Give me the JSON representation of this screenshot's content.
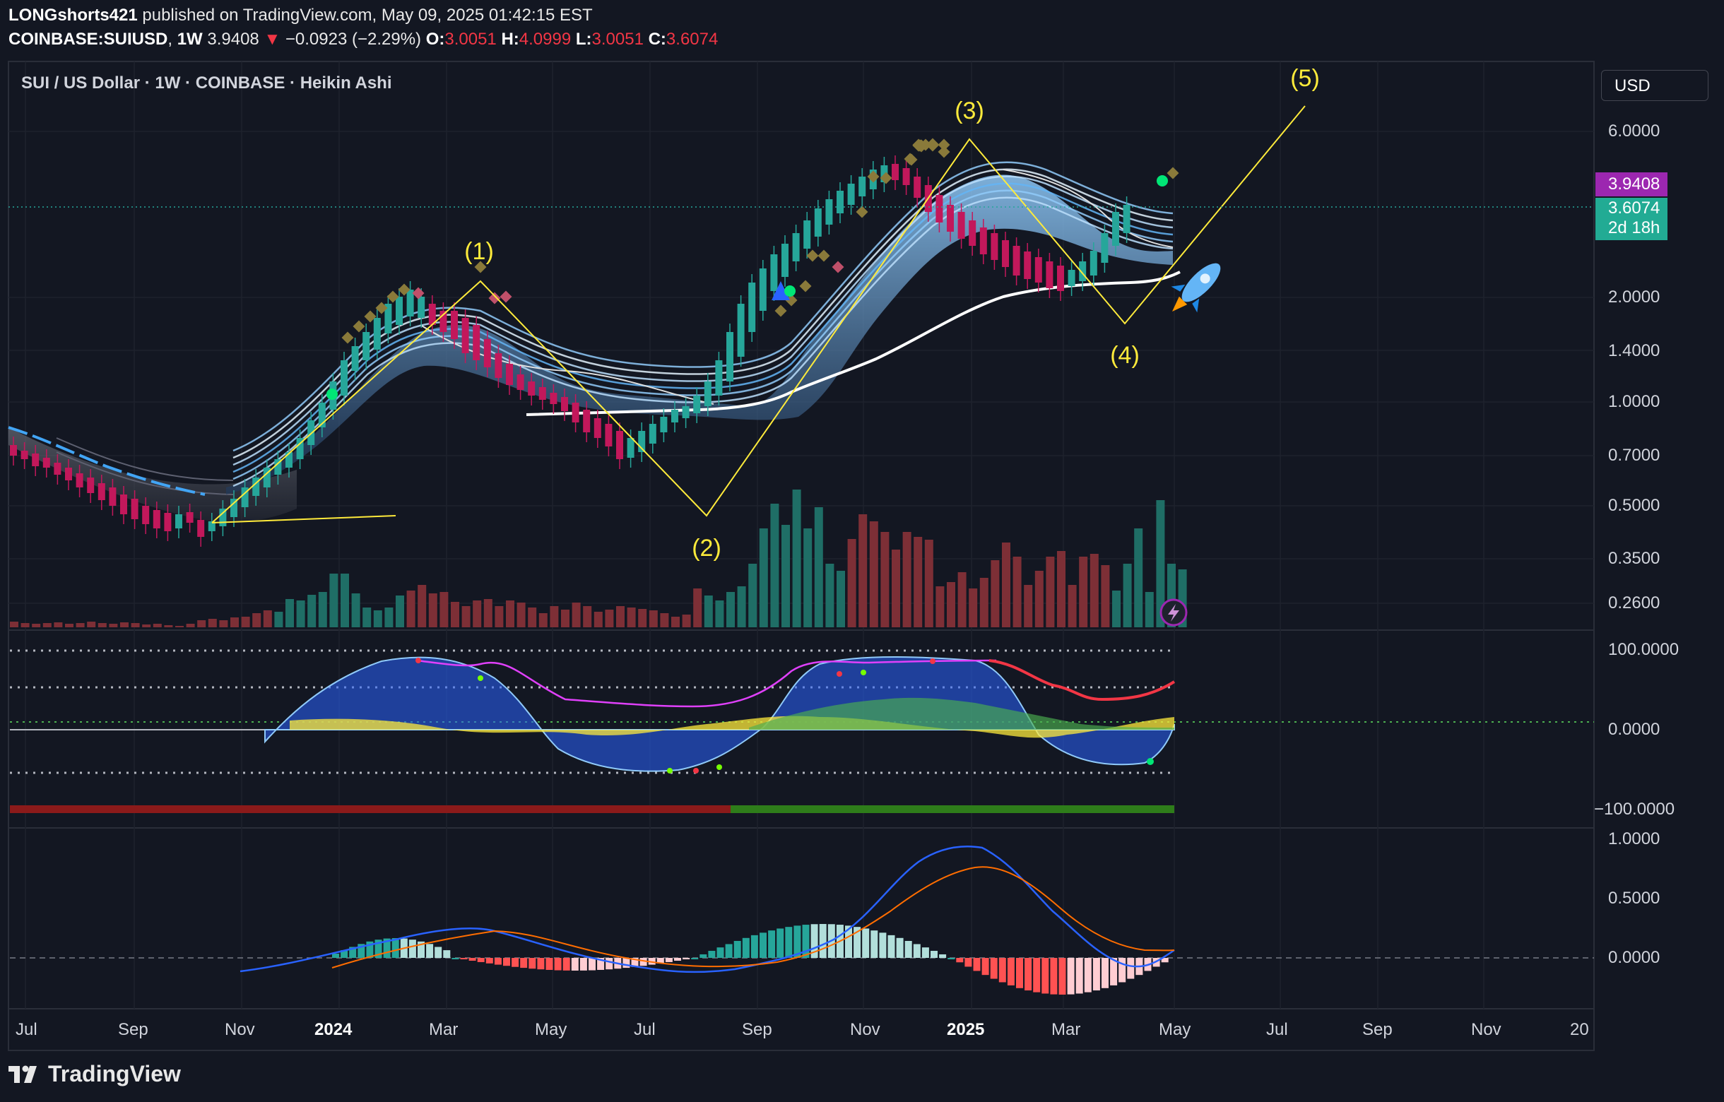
{
  "header": {
    "author": "LONGshorts421",
    "published_text": "published on TradingView.com, May 09, 2025 01:42:15 EST",
    "symbol": "COINBASE:SUIUSD",
    "interval": "1W",
    "last_price": "3.9408",
    "change": "−0.0923 (−2.29%)",
    "open_label": "O:",
    "open": "3.0051",
    "high_label": "H:",
    "high": "4.0999",
    "low_label": "L:",
    "low": "3.0051",
    "close_label": "C:",
    "close": "3.6074"
  },
  "legend": {
    "title": "SUI / US Dollar · 1W · COINBASE · Heikin Ashi"
  },
  "currency_button": "USD",
  "price_scale": {
    "ticks": [
      "6.0000",
      "2.0000",
      "1.4000",
      "1.0000",
      "0.7000",
      "0.5000",
      "0.3500",
      "0.2600"
    ],
    "last_price_tag": "3.9408",
    "close_tag": "3.6074",
    "countdown_tag": "2d 18h",
    "colors": {
      "last": "#9c27b0",
      "close": "#22ab94"
    }
  },
  "oscillator_scale": {
    "ticks": [
      "100.0000",
      "0.0000",
      "−100.0000"
    ]
  },
  "macd_scale": {
    "ticks": [
      "1.0000",
      "0.5000",
      "0.0000"
    ]
  },
  "time_axis": {
    "labels": [
      "Jul",
      "Sep",
      "Nov",
      "2024",
      "Mar",
      "May",
      "Jul",
      "Sep",
      "Nov",
      "2025",
      "Mar",
      "May",
      "Jul",
      "Sep",
      "Nov",
      "20"
    ]
  },
  "waves": [
    "(1)",
    "(2)",
    "(3)",
    "(4)",
    "(5)"
  ],
  "icons": {
    "rocket": "rocket-icon",
    "lightning": "lightning-icon",
    "logo": "tradingview-logo"
  },
  "brand": "TradingView",
  "colors": {
    "bg": "#131722",
    "up": "#26a69a",
    "down": "#c2185b",
    "wave": "#ffeb3b",
    "ema_white": "#ffffff"
  }
}
